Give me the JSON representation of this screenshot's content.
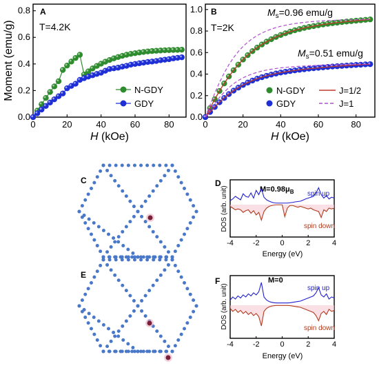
{
  "chart_data": [
    {
      "id": "A",
      "type": "scatter",
      "panel_label": "A",
      "annotation": "T=4.2K",
      "xlabel_italic": "H",
      "xlabel_rest": " (kOe)",
      "ylabel": "Moment (emu/g)",
      "xlim": [
        0,
        90
      ],
      "ylim": [
        0,
        0.85
      ],
      "xticks": [
        "0",
        "20",
        "40",
        "60",
        "80"
      ],
      "yticks": [
        "0.0",
        "0.2",
        "0.4",
        "0.6",
        "0.8"
      ],
      "legend": "bottom-right",
      "series": [
        {
          "name": "N-GDY",
          "color": "#2e8b2e",
          "line_color": "#2e8b2e",
          "x": [
            0,
            2.5,
            5,
            7.5,
            10,
            12.5,
            15,
            17.5,
            20,
            22.5,
            25,
            27.5,
            30,
            32.5,
            35,
            37.5,
            40,
            42.5,
            45,
            47.5,
            50,
            52.5,
            55,
            57.5,
            60,
            62.5,
            65,
            67.5,
            70,
            72.5,
            75,
            77.5,
            80,
            82.5,
            85,
            87.5
          ],
          "y": [
            0.0,
            0.049,
            0.097,
            0.144,
            0.189,
            0.231,
            0.27,
            0.355,
            0.388,
            0.418,
            0.445,
            0.469,
            0.321,
            0.344,
            0.366,
            0.385,
            0.402,
            0.417,
            0.43,
            0.442,
            0.452,
            0.461,
            0.469,
            0.476,
            0.481,
            0.486,
            0.49,
            0.494,
            0.497,
            0.499,
            0.501,
            0.503,
            0.504,
            0.505,
            0.506,
            0.507
          ]
        },
        {
          "name": "GDY",
          "color": "#1f2fd6",
          "line_color": "#1f2fd6",
          "x": [
            0,
            2.5,
            5,
            7.5,
            10,
            12.5,
            15,
            17.5,
            20,
            22.5,
            25,
            27.5,
            30,
            32.5,
            35,
            37.5,
            40,
            42.5,
            45,
            47.5,
            50,
            52.5,
            55,
            57.5,
            60,
            62.5,
            65,
            67.5,
            70,
            72.5,
            75,
            77.5,
            80,
            82.5,
            85,
            87.5
          ],
          "y": [
            0.0,
            0.029,
            0.057,
            0.084,
            0.11,
            0.134,
            0.157,
            0.178,
            0.217,
            0.235,
            0.251,
            0.28,
            0.293,
            0.305,
            0.315,
            0.325,
            0.334,
            0.349,
            0.362,
            0.367,
            0.372,
            0.38,
            0.386,
            0.395,
            0.4,
            0.405,
            0.41,
            0.415,
            0.418,
            0.422,
            0.428,
            0.432,
            0.436,
            0.442,
            0.446,
            0.45
          ]
        }
      ]
    },
    {
      "id": "B",
      "type": "scatter",
      "panel_label": "B",
      "annotation": "T=2K",
      "ms_high_pre": "M",
      "ms_high_sub": "s",
      "ms_high_post": "=0.96 emu/g",
      "ms_low_pre": "M",
      "ms_low_sub": "s",
      "ms_low_post": "=0.51 emu/g",
      "xlabel_italic": "H",
      "xlabel_rest": " (kOe)",
      "xlim": [
        0,
        90
      ],
      "ylim": [
        0,
        1.05
      ],
      "xticks": [
        "0",
        "20",
        "40",
        "60",
        "80"
      ],
      "yticks": [
        "0.0",
        "0.2",
        "0.4",
        "0.6",
        "0.8",
        "1.0"
      ],
      "legend": "bottom-right",
      "series": [
        {
          "name": "N-GDY",
          "color": "#2e8b2e",
          "x": [
            0,
            2.5,
            5,
            7.5,
            10,
            12.5,
            15,
            17.5,
            20,
            22.5,
            25,
            27.5,
            30,
            32.5,
            35,
            37.5,
            40,
            42.5,
            45,
            47.5,
            50,
            52.5,
            55,
            57.5,
            60,
            62.5,
            65,
            67.5,
            70,
            72.5,
            75,
            77.5,
            80,
            82.5,
            85,
            87.5
          ],
          "y": [
            0.0,
            0.084,
            0.166,
            0.243,
            0.313,
            0.378,
            0.436,
            0.488,
            0.535,
            0.576,
            0.613,
            0.646,
            0.675,
            0.701,
            0.724,
            0.745,
            0.763,
            0.779,
            0.794,
            0.807,
            0.818,
            0.829,
            0.838,
            0.846,
            0.854,
            0.861,
            0.867,
            0.873,
            0.878,
            0.883,
            0.888,
            0.892,
            0.896,
            0.9,
            0.904,
            0.908
          ]
        },
        {
          "name": "GDY",
          "color": "#1f2fd6",
          "x": [
            0,
            2.5,
            5,
            7.5,
            10,
            12.5,
            15,
            17.5,
            20,
            22.5,
            25,
            27.5,
            30,
            32.5,
            35,
            37.5,
            40,
            42.5,
            45,
            47.5,
            50,
            52.5,
            55,
            57.5,
            60,
            62.5,
            65,
            67.5,
            70,
            72.5,
            75,
            77.5,
            80,
            82.5,
            85,
            87.5
          ],
          "y": [
            0.0,
            0.048,
            0.094,
            0.138,
            0.178,
            0.214,
            0.246,
            0.274,
            0.299,
            0.321,
            0.34,
            0.357,
            0.371,
            0.384,
            0.395,
            0.405,
            0.414,
            0.421,
            0.428,
            0.434,
            0.44,
            0.445,
            0.45,
            0.454,
            0.458,
            0.462,
            0.466,
            0.47,
            0.473,
            0.476,
            0.479,
            0.482,
            0.485,
            0.487,
            0.49,
            0.492
          ]
        }
      ],
      "fits": [
        {
          "name": "J=1/2",
          "style": "solid",
          "color": "#c0392b"
        },
        {
          "name": "J=1",
          "style": "dashed",
          "color": "#b04bd0"
        }
      ]
    },
    {
      "id": "D",
      "type": "line",
      "panel_label": "D",
      "moment_pre": "M=0.98μ",
      "moment_sub": "B",
      "xlabel": "Energy (eV)",
      "ylabel": "DOS (arb. unit)",
      "xlim": [
        -4,
        4
      ],
      "xticks": [
        "-4",
        "-2",
        "0",
        "2",
        "4"
      ],
      "spin_up_label": "spin up",
      "spin_down_label": "spin down",
      "series": [
        {
          "name": "spin up",
          "color": "#1f1fd0",
          "x": [
            -4,
            -3.8,
            -3.6,
            -3.4,
            -3.2,
            -3,
            -2.8,
            -2.6,
            -2.4,
            -2.2,
            -2,
            -1.8,
            -1.6,
            -1.4,
            -1.2,
            -1,
            -0.8,
            -0.6,
            -0.4,
            -0.2,
            0,
            0.2,
            0.4,
            0.6,
            0.8,
            1,
            1.2,
            1.4,
            1.6,
            1.8,
            2,
            2.2,
            2.4,
            2.6,
            2.8,
            3,
            3.2,
            3.4,
            3.6,
            3.8,
            4
          ],
          "y": [
            0.15,
            0.25,
            0.4,
            0.3,
            0.2,
            0.55,
            0.4,
            0.35,
            0.6,
            0.3,
            0.75,
            0.5,
            0.85,
            0.35,
            0.2,
            0.12,
            0.06,
            0.02,
            0.01,
            0.01,
            0.01,
            0.01,
            0.01,
            0.03,
            0.05,
            0.08,
            0.1,
            0.12,
            0.18,
            0.25,
            0.3,
            0.35,
            0.4,
            0.6,
            0.9,
            0.5,
            0.3,
            0.45,
            0.25,
            0.35,
            0.3
          ]
        },
        {
          "name": "spin down",
          "color": "#b03a1c",
          "x": [
            -4,
            -3.8,
            -3.6,
            -3.4,
            -3.2,
            -3,
            -2.8,
            -2.6,
            -2.4,
            -2.2,
            -2,
            -1.8,
            -1.6,
            -1.4,
            -1.2,
            -1,
            -0.8,
            -0.6,
            -0.4,
            -0.2,
            0,
            0.2,
            0.4,
            0.6,
            0.8,
            1,
            1.2,
            1.4,
            1.6,
            1.8,
            2,
            2.2,
            2.4,
            2.6,
            2.8,
            3,
            3.2,
            3.4,
            3.6,
            3.8,
            4
          ],
          "y": [
            0.1,
            0.2,
            0.3,
            0.25,
            0.3,
            0.45,
            0.35,
            0.3,
            0.5,
            0.35,
            0.6,
            0.45,
            0.9,
            0.4,
            0.2,
            0.1,
            0.05,
            0.02,
            0.01,
            0.01,
            0.01,
            0.7,
            0.2,
            0.05,
            0.05,
            0.1,
            0.15,
            0.1,
            0.15,
            0.2,
            0.25,
            0.2,
            0.3,
            0.35,
            0.4,
            0.75,
            0.3,
            0.4,
            0.2,
            0.25,
            0.2
          ]
        }
      ]
    },
    {
      "id": "F",
      "type": "line",
      "panel_label": "F",
      "moment_pre": "M=0",
      "moment_sub": "",
      "xlabel": "Energy (eV)",
      "ylabel": "DOS (arb. unit)",
      "xlim": [
        -4,
        4
      ],
      "xticks": [
        "-4",
        "-2",
        "0",
        "2",
        "4"
      ],
      "spin_up_label": "spin up",
      "spin_down_label": "spin down",
      "series": [
        {
          "name": "spin up",
          "color": "#1f1fd0",
          "x": [
            -4,
            -3.8,
            -3.6,
            -3.4,
            -3.2,
            -3,
            -2.8,
            -2.6,
            -2.4,
            -2.2,
            -2,
            -1.8,
            -1.6,
            -1.4,
            -1.2,
            -1,
            -0.8,
            -0.6,
            -0.4,
            -0.2,
            0,
            0.2,
            0.4,
            0.6,
            0.8,
            1,
            1.2,
            1.4,
            1.6,
            1.8,
            2,
            2.2,
            2.4,
            2.6,
            2.8,
            3,
            3.2,
            3.4,
            3.6,
            3.8,
            4
          ],
          "y": [
            0.15,
            0.3,
            0.2,
            0.35,
            0.25,
            0.4,
            0.3,
            0.45,
            0.35,
            0.5,
            0.4,
            0.55,
            1.0,
            0.3,
            0.15,
            0.08,
            0.04,
            0.02,
            0.01,
            0.01,
            0.01,
            0.01,
            0.01,
            0.02,
            0.04,
            0.06,
            0.08,
            0.1,
            0.15,
            0.2,
            0.25,
            0.3,
            0.35,
            0.5,
            0.75,
            0.4,
            0.3,
            0.45,
            0.2,
            0.3,
            0.25
          ]
        },
        {
          "name": "spin down",
          "color": "#b03a1c",
          "x": [
            -4,
            -3.8,
            -3.6,
            -3.4,
            -3.2,
            -3,
            -2.8,
            -2.6,
            -2.4,
            -2.2,
            -2,
            -1.8,
            -1.6,
            -1.4,
            -1.2,
            -1,
            -0.8,
            -0.6,
            -0.4,
            -0.2,
            0,
            0.2,
            0.4,
            0.6,
            0.8,
            1,
            1.2,
            1.4,
            1.6,
            1.8,
            2,
            2.2,
            2.4,
            2.6,
            2.8,
            3,
            3.2,
            3.4,
            3.6,
            3.8,
            4
          ],
          "y": [
            0.15,
            0.3,
            0.2,
            0.35,
            0.25,
            0.4,
            0.3,
            0.45,
            0.35,
            0.5,
            0.4,
            0.55,
            1.0,
            0.3,
            0.15,
            0.08,
            0.04,
            0.02,
            0.01,
            0.01,
            0.01,
            0.01,
            0.01,
            0.02,
            0.04,
            0.06,
            0.08,
            0.1,
            0.15,
            0.2,
            0.25,
            0.3,
            0.35,
            0.5,
            0.75,
            0.4,
            0.3,
            0.45,
            0.2,
            0.3,
            0.25
          ]
        }
      ]
    }
  ],
  "structures": [
    {
      "panel_label": "C",
      "atom_color": "#4a78c8",
      "dopant_color": "#7a1f3a",
      "dopant_count": 1
    },
    {
      "panel_label": "E",
      "atom_color": "#4a78c8",
      "dopant_color": "#7a1f3a",
      "dopant_count": 2
    }
  ]
}
